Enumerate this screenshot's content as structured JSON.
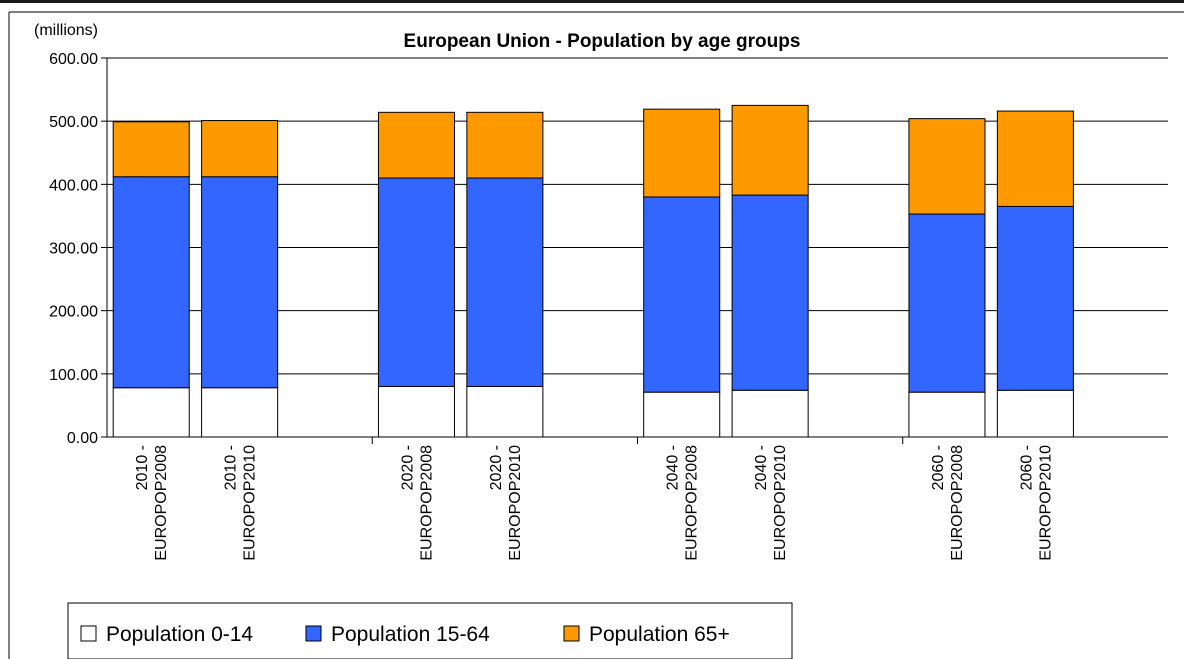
{
  "chart_data": {
    "type": "bar",
    "stacked": true,
    "title": "European Union - Population by age groups",
    "unit_label": "(millions)",
    "ylim": [
      0,
      600
    ],
    "yticks": [
      "0.00",
      "100.00",
      "200.00",
      "300.00",
      "400.00",
      "500.00",
      "600.00"
    ],
    "grid": true,
    "legend_position": "bottom-left",
    "category_groups": [
      [
        [
          "2010 -",
          "EUROPOP2008"
        ],
        [
          "2010 -",
          "EUROPOP2010"
        ]
      ],
      [
        [
          "2020 -",
          "EUROPOP2008"
        ],
        [
          "2020 -",
          "EUROPOP2010"
        ]
      ],
      [
        [
          "2040 -",
          "EUROPOP2008"
        ],
        [
          "2040 -",
          "EUROPOP2010"
        ]
      ],
      [
        [
          "2060 -",
          "EUROPOP2008"
        ],
        [
          "2060 -",
          "EUROPOP2010"
        ]
      ]
    ],
    "series": [
      {
        "name": "Population 0-14",
        "color": "#ffffff",
        "values": [
          78,
          78,
          80,
          80,
          71,
          74,
          71,
          74
        ]
      },
      {
        "name": "Population 15-64",
        "color": "#3366ff",
        "values": [
          334,
          334,
          330,
          330,
          309,
          309,
          282,
          291
        ]
      },
      {
        "name": "Population 65+",
        "color": "#ff9900",
        "values": [
          87,
          89,
          104,
          104,
          139,
          142,
          151,
          151
        ]
      }
    ]
  }
}
